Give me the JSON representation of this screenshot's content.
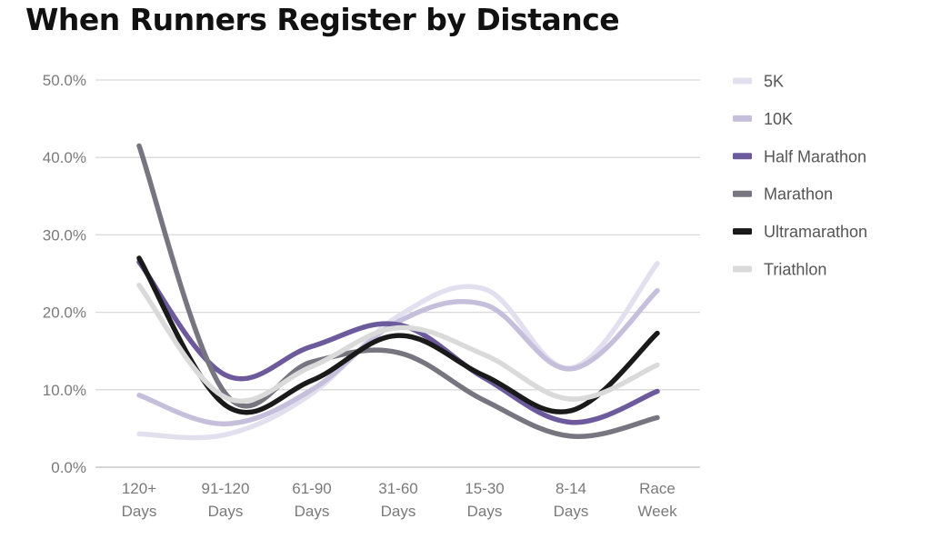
{
  "chart_data": {
    "type": "line",
    "title": "When Runners Register by Distance",
    "xlabel": "",
    "ylabel": "",
    "categories": [
      [
        "120+",
        "Days"
      ],
      [
        "91-120",
        "Days"
      ],
      [
        "61-90",
        "Days"
      ],
      [
        "31-60",
        "Days"
      ],
      [
        "15-30",
        "Days"
      ],
      [
        "8-14",
        "Days"
      ],
      [
        "Race",
        "Week"
      ]
    ],
    "y_ticks": [
      "0.0%",
      "10.0%",
      "20.0%",
      "30.0%",
      "40.0%",
      "50.0%"
    ],
    "ylim": [
      0,
      50
    ],
    "grid": "horizontal",
    "legend_position": "right",
    "series": [
      {
        "name": "5K",
        "color": "#e2e0ef",
        "values": [
          4.3,
          4.2,
          9.5,
          19.5,
          23.0,
          12.8,
          26.3
        ]
      },
      {
        "name": "10K",
        "color": "#c5bfdc",
        "values": [
          9.3,
          5.6,
          10.0,
          18.8,
          21.0,
          12.7,
          22.8
        ]
      },
      {
        "name": "Half Marathon",
        "color": "#6d5a9c",
        "values": [
          26.5,
          11.9,
          15.6,
          18.4,
          11.5,
          5.8,
          9.8
        ]
      },
      {
        "name": "Marathon",
        "color": "#77757f",
        "values": [
          41.5,
          9.5,
          13.6,
          14.8,
          8.6,
          4.0,
          6.4
        ]
      },
      {
        "name": "Ultramarathon",
        "color": "#1a1a1a",
        "values": [
          27.0,
          8.0,
          11.2,
          17.0,
          11.8,
          7.3,
          17.3
        ]
      },
      {
        "name": "Triathlon",
        "color": "#dadada",
        "values": [
          23.5,
          9.0,
          13.0,
          18.0,
          14.5,
          8.8,
          13.2
        ]
      }
    ]
  }
}
